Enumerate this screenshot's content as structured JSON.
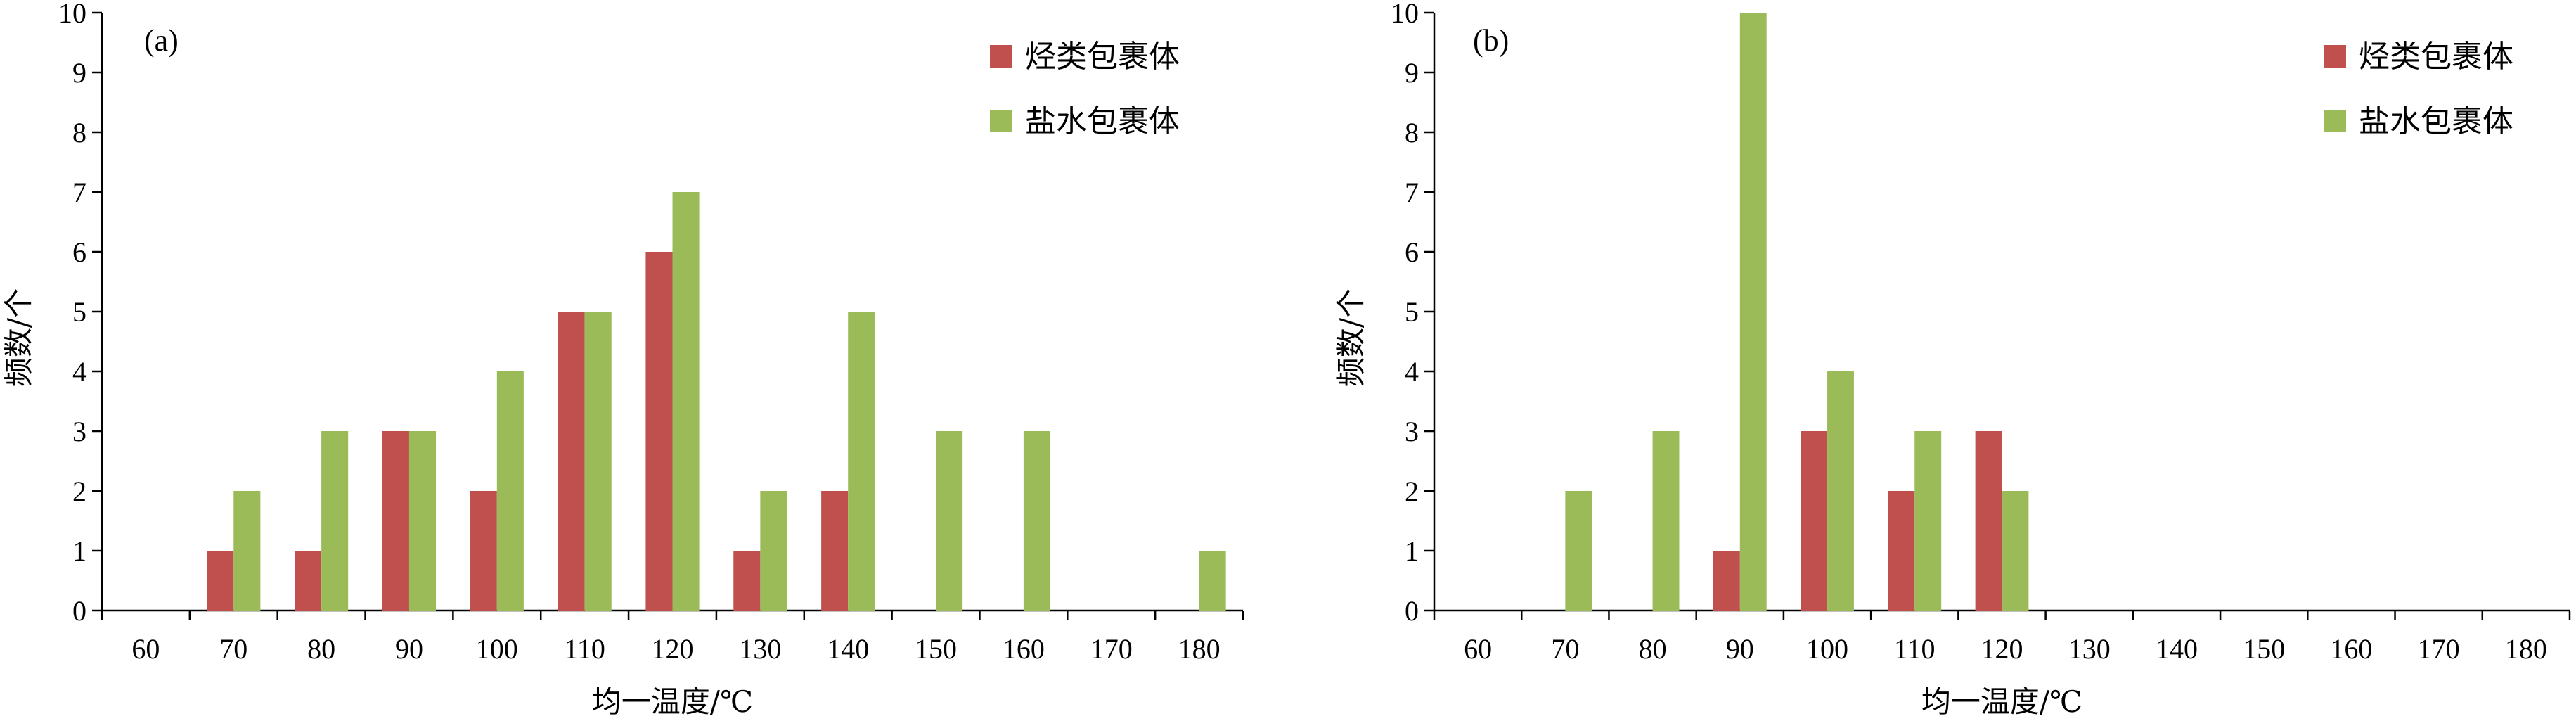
{
  "colors": {
    "hydrocarbon": "#c0504d",
    "brine": "#9bbb59"
  },
  "chart_data": [
    {
      "type": "bar",
      "panel_label": "(a)",
      "xlabel": "均一温度/℃",
      "ylabel": "频数/个",
      "ylim": [
        0,
        10
      ],
      "yticks": [
        "0",
        "1",
        "2",
        "3",
        "4",
        "5",
        "6",
        "7",
        "8",
        "9",
        "10"
      ],
      "categories": [
        "60",
        "70",
        "80",
        "90",
        "100",
        "110",
        "120",
        "130",
        "140",
        "150",
        "160",
        "170",
        "180"
      ],
      "legend_position": "top-right",
      "series": [
        {
          "name": "烃类包裹体",
          "values": [
            0,
            1,
            1,
            3,
            2,
            5,
            6,
            1,
            2,
            0,
            0,
            0,
            0
          ]
        },
        {
          "name": "盐水包裹体",
          "values": [
            0,
            2,
            3,
            3,
            4,
            5,
            7,
            2,
            5,
            3,
            3,
            0,
            1
          ]
        }
      ]
    },
    {
      "type": "bar",
      "panel_label": "(b)",
      "xlabel": "均一温度/℃",
      "ylabel": "频数/个",
      "ylim": [
        0,
        10
      ],
      "yticks": [
        "0",
        "1",
        "2",
        "3",
        "4",
        "5",
        "6",
        "7",
        "8",
        "9",
        "10"
      ],
      "categories": [
        "60",
        "70",
        "80",
        "90",
        "100",
        "110",
        "120",
        "130",
        "140",
        "150",
        "160",
        "170",
        "180"
      ],
      "legend_position": "top-right",
      "series": [
        {
          "name": "烃类包裹体",
          "values": [
            0,
            0,
            0,
            1,
            3,
            2,
            3,
            0,
            0,
            0,
            0,
            0,
            0
          ]
        },
        {
          "name": "盐水包裹体",
          "values": [
            0,
            2,
            3,
            10,
            4,
            3,
            2,
            0,
            0,
            0,
            0,
            0,
            0
          ]
        }
      ]
    }
  ]
}
